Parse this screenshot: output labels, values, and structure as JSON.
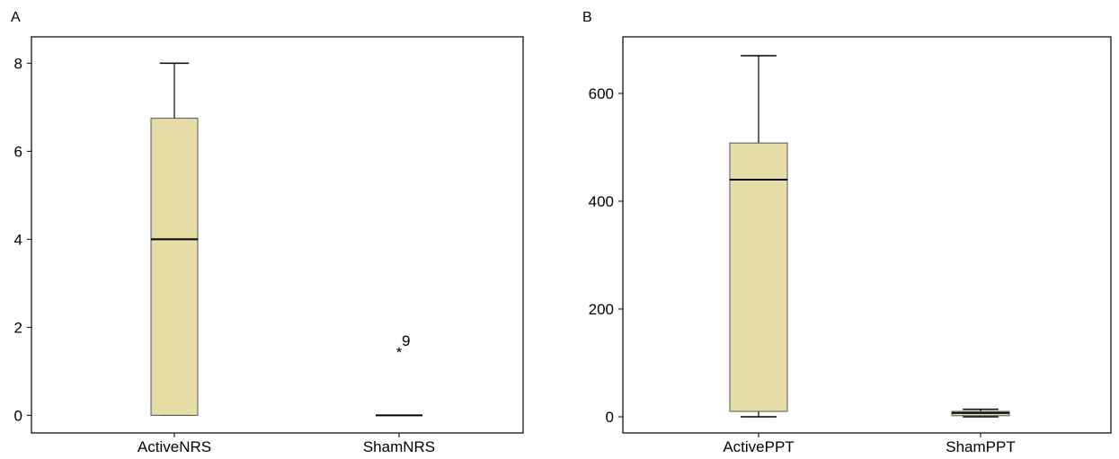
{
  "chart_data": [
    {
      "type": "boxplot",
      "panel_label": "A",
      "categories": [
        "ActiveNRS",
        "ShamNRS"
      ],
      "ylim": [
        -0.4,
        8.6
      ],
      "yticks": [
        0,
        2,
        4,
        6,
        8
      ],
      "grid": false,
      "series": [
        {
          "category": "ActiveNRS",
          "min": 0,
          "q1": 0,
          "median": 4,
          "q3": 6.75,
          "max": 8,
          "outliers": []
        },
        {
          "category": "ShamNRS",
          "min": 0,
          "q1": 0,
          "median": 0,
          "q3": 0,
          "max": 0,
          "outliers": [
            {
              "value": 1.5,
              "label": "9",
              "marker": "*"
            }
          ]
        }
      ],
      "box_color": "#e5dca6"
    },
    {
      "type": "boxplot",
      "panel_label": "B",
      "categories": [
        "ActivePPT",
        "ShamPPT"
      ],
      "ylim": [
        -30,
        705
      ],
      "yticks": [
        0,
        200,
        400,
        600
      ],
      "grid": false,
      "series": [
        {
          "category": "ActivePPT",
          "min": 0,
          "q1": 10,
          "median": 440,
          "q3": 508,
          "max": 670,
          "outliers": []
        },
        {
          "category": "ShamPPT",
          "min": 0,
          "q1": 2,
          "median": 7,
          "q3": 10,
          "max": 14,
          "outliers": []
        }
      ],
      "box_color": "#e5dca6"
    }
  ]
}
